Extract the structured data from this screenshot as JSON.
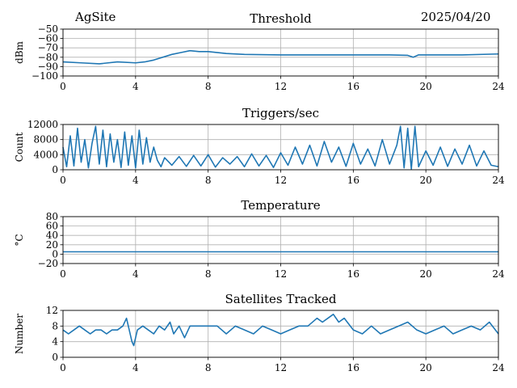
{
  "header": {
    "site": "AgSite",
    "date": "2025/04/20"
  },
  "x_ticks": [
    0,
    4,
    8,
    12,
    16,
    20,
    24
  ],
  "line_color": "#1f77b4",
  "chart_data": [
    {
      "type": "line",
      "title": "Threshold",
      "ylabel": "dBm",
      "xlim": [
        0,
        24
      ],
      "ylim": [
        -100,
        -50
      ],
      "yticks": [
        -100,
        -90,
        -80,
        -70,
        -60,
        -50
      ],
      "ytick_labels": [
        "−100",
        "−90",
        "−80",
        "−70",
        "−60",
        "−50"
      ],
      "grid": true,
      "x": [
        0,
        1,
        2,
        3,
        4,
        4.5,
        5,
        6,
        6.5,
        7,
        7.5,
        8,
        9,
        10,
        12,
        14,
        16,
        18,
        19,
        19.3,
        19.6,
        20,
        22,
        24
      ],
      "values": [
        -85,
        -86,
        -87,
        -85,
        -86,
        -85,
        -83,
        -77,
        -75,
        -73,
        -74,
        -74,
        -76,
        -77,
        -77.5,
        -77.5,
        -77.5,
        -77.5,
        -78,
        -80,
        -77.5,
        -77.5,
        -77.5,
        -76.5
      ]
    },
    {
      "type": "line",
      "title": "Triggers/sec",
      "ylabel": "Count",
      "xlim": [
        0,
        24
      ],
      "ylim": [
        0,
        12000
      ],
      "yticks": [
        0,
        4000,
        8000,
        12000
      ],
      "ytick_labels": [
        "0",
        "4000",
        "8000",
        "12000"
      ],
      "grid": true,
      "x": [
        0,
        0.2,
        0.4,
        0.6,
        0.8,
        1.0,
        1.2,
        1.4,
        1.6,
        1.8,
        2.0,
        2.2,
        2.4,
        2.6,
        2.8,
        3.0,
        3.2,
        3.4,
        3.6,
        3.8,
        4.0,
        4.2,
        4.4,
        4.6,
        4.8,
        5.0,
        5.2,
        5.4,
        5.6,
        6.0,
        6.4,
        6.8,
        7.2,
        7.6,
        8.0,
        8.4,
        8.8,
        9.2,
        9.6,
        10.0,
        10.4,
        10.8,
        11.2,
        11.6,
        12.0,
        12.4,
        12.8,
        13.2,
        13.6,
        14.0,
        14.4,
        14.8,
        15.2,
        15.6,
        16.0,
        16.4,
        16.8,
        17.2,
        17.6,
        18.0,
        18.4,
        18.6,
        18.8,
        19.0,
        19.2,
        19.4,
        19.6,
        20.0,
        20.4,
        20.8,
        21.2,
        21.6,
        22.0,
        22.4,
        22.8,
        23.2,
        23.6,
        24.0
      ],
      "values": [
        6000,
        800,
        9000,
        1000,
        11000,
        2000,
        8000,
        500,
        7000,
        11500,
        1500,
        10500,
        800,
        9500,
        2000,
        8000,
        600,
        10000,
        1200,
        9000,
        500,
        10500,
        1500,
        8500,
        2000,
        6000,
        2500,
        800,
        3200,
        1200,
        3500,
        900,
        3800,
        1000,
        4000,
        700,
        3200,
        1500,
        3500,
        800,
        4200,
        1000,
        3800,
        600,
        4500,
        1200,
        6000,
        1500,
        6500,
        1000,
        7500,
        2000,
        6000,
        900,
        7000,
        1500,
        5500,
        1000,
        8000,
        1500,
        6500,
        11500,
        500,
        11000,
        200,
        11500,
        800,
        5000,
        1200,
        6000,
        900,
        5500,
        1500,
        6500,
        1000,
        5000,
        1200,
        800
      ]
    },
    {
      "type": "line",
      "title": "Temperature",
      "ylabel": "°C",
      "xlim": [
        0,
        24
      ],
      "ylim": [
        -20,
        80
      ],
      "yticks": [
        -20,
        0,
        20,
        40,
        60,
        80
      ],
      "ytick_labels": [
        "−20",
        "0",
        "20",
        "40",
        "60",
        "80"
      ],
      "grid": true,
      "x": [
        0,
        24
      ],
      "values": [
        5,
        5
      ]
    },
    {
      "type": "line",
      "title": "Satellites Tracked",
      "ylabel": "Number",
      "xlim": [
        0,
        24
      ],
      "ylim": [
        0,
        12
      ],
      "yticks": [
        0,
        4,
        8,
        12
      ],
      "ytick_labels": [
        "0",
        "4",
        "8",
        "12"
      ],
      "grid": true,
      "x": [
        0,
        0.3,
        0.6,
        0.9,
        1.2,
        1.5,
        1.8,
        2.1,
        2.4,
        2.7,
        3.0,
        3.3,
        3.5,
        3.7,
        3.8,
        3.9,
        4.1,
        4.4,
        4.7,
        5.0,
        5.3,
        5.6,
        5.9,
        6.1,
        6.4,
        6.7,
        7.0,
        7.5,
        8.0,
        8.5,
        9.0,
        9.5,
        10.0,
        10.5,
        11.0,
        11.5,
        12.0,
        12.5,
        13.0,
        13.5,
        14.0,
        14.3,
        14.6,
        14.9,
        15.2,
        15.5,
        16.0,
        16.5,
        17.0,
        17.5,
        18.0,
        18.5,
        19.0,
        19.5,
        20.0,
        20.5,
        21.0,
        21.5,
        22.0,
        22.5,
        23.0,
        23.5,
        24.0
      ],
      "values": [
        7,
        6,
        7,
        8,
        7,
        6,
        7,
        7,
        6,
        7,
        7,
        8,
        10,
        6,
        4,
        3,
        7,
        8,
        7,
        6,
        8,
        7,
        9,
        6,
        8,
        5,
        8,
        8,
        8,
        8,
        6,
        8,
        7,
        6,
        8,
        7,
        6,
        7,
        8,
        8,
        10,
        9,
        10,
        11,
        9,
        10,
        7,
        6,
        8,
        6,
        7,
        8,
        9,
        7,
        6,
        7,
        8,
        6,
        7,
        8,
        7,
        9,
        6
      ]
    }
  ]
}
